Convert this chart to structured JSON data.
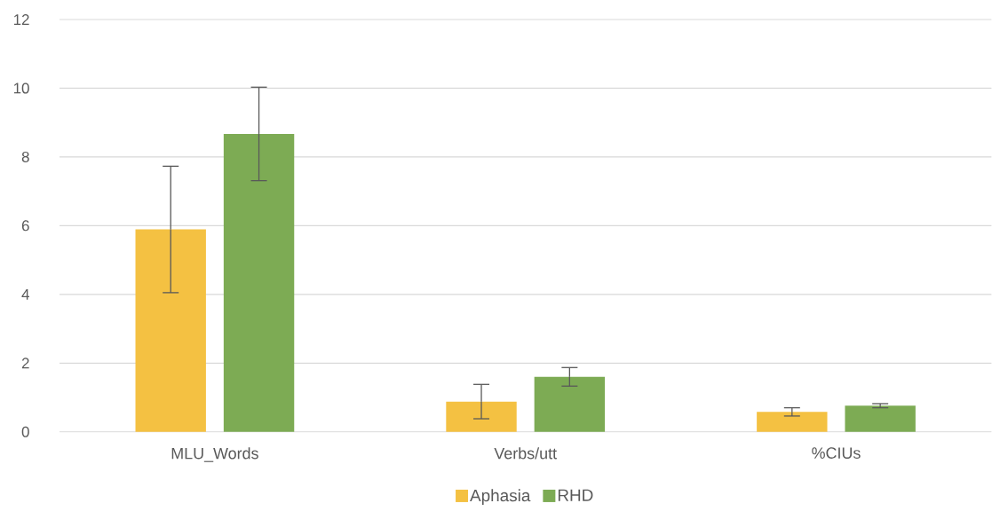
{
  "chart_data": {
    "type": "bar",
    "categories": [
      "MLU_Words",
      "Verbs/utt",
      "%CIUs"
    ],
    "series": [
      {
        "name": "Aphasia",
        "color": "#f4c142",
        "values": [
          5.89,
          0.88,
          0.58
        ],
        "errors": [
          1.84,
          0.5,
          0.12
        ]
      },
      {
        "name": "RHD",
        "color": "#7dab54",
        "values": [
          8.67,
          1.6,
          0.76
        ],
        "errors": [
          1.36,
          0.27,
          0.06
        ]
      }
    ],
    "ylim": [
      0,
      12
    ],
    "yticks": [
      0,
      2,
      4,
      6,
      8,
      10,
      12
    ],
    "grid": "y",
    "legend": "bottom"
  }
}
